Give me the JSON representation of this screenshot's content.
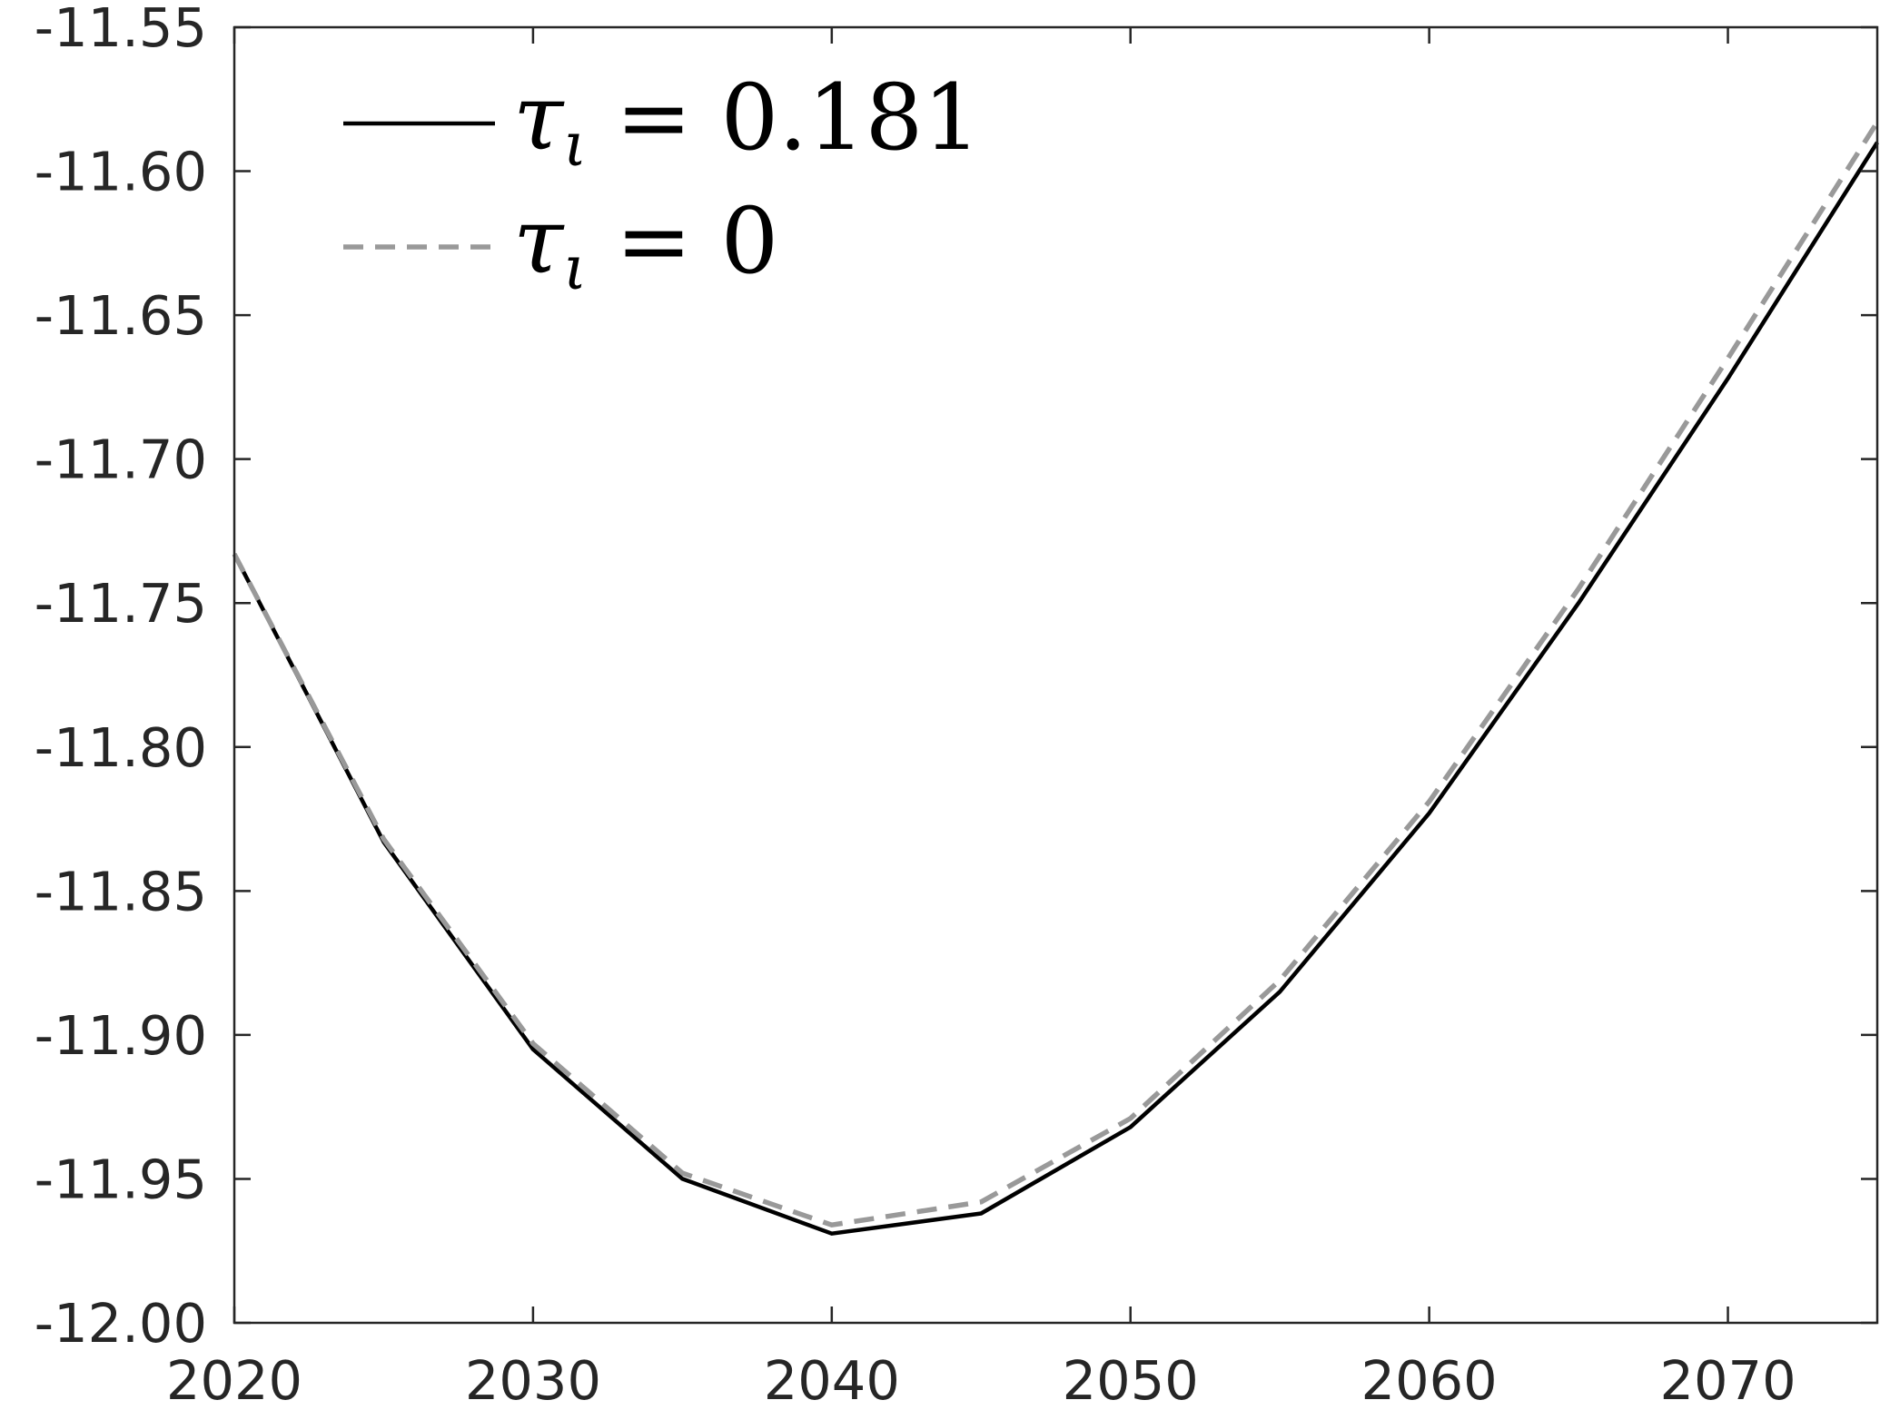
{
  "chart_data": {
    "type": "line",
    "title": "",
    "xlabel": "",
    "ylabel": "",
    "xlim": [
      2020,
      2075
    ],
    "ylim": [
      -12.0,
      -11.55
    ],
    "xticks": [
      "2020",
      "2030",
      "2040",
      "2050",
      "2060",
      "2070"
    ],
    "yticks": [
      "-11.55",
      "-11.60",
      "-11.65",
      "-11.70",
      "-11.75",
      "-11.80",
      "-11.85",
      "-11.90",
      "-11.95",
      "-12.00"
    ],
    "grid": false,
    "legend_position": "top-left",
    "series": [
      {
        "name": "τι = 0.181",
        "name_symbol": "τ",
        "name_subscript": "ι",
        "name_rest": " = 0.181",
        "style": "solid",
        "color": "#000000",
        "x": [
          2020,
          2025,
          2030,
          2035,
          2040,
          2045,
          2050,
          2055,
          2060,
          2065,
          2070,
          2075
        ],
        "y": [
          -11.733,
          -11.833,
          -11.905,
          -11.95,
          -11.969,
          -11.962,
          -11.932,
          -11.885,
          -11.823,
          -11.75,
          -11.672,
          -11.59
        ]
      },
      {
        "name": "τι = 0",
        "name_symbol": "τ",
        "name_subscript": "ι",
        "name_rest": " = 0",
        "style": "dashed",
        "color": "#999999",
        "x": [
          2020,
          2025,
          2030,
          2035,
          2040,
          2045,
          2050,
          2055,
          2060,
          2065,
          2070,
          2075
        ],
        "y": [
          -11.733,
          -11.832,
          -11.903,
          -11.948,
          -11.966,
          -11.958,
          -11.929,
          -11.881,
          -11.819,
          -11.745,
          -11.665,
          -11.583
        ]
      }
    ]
  }
}
